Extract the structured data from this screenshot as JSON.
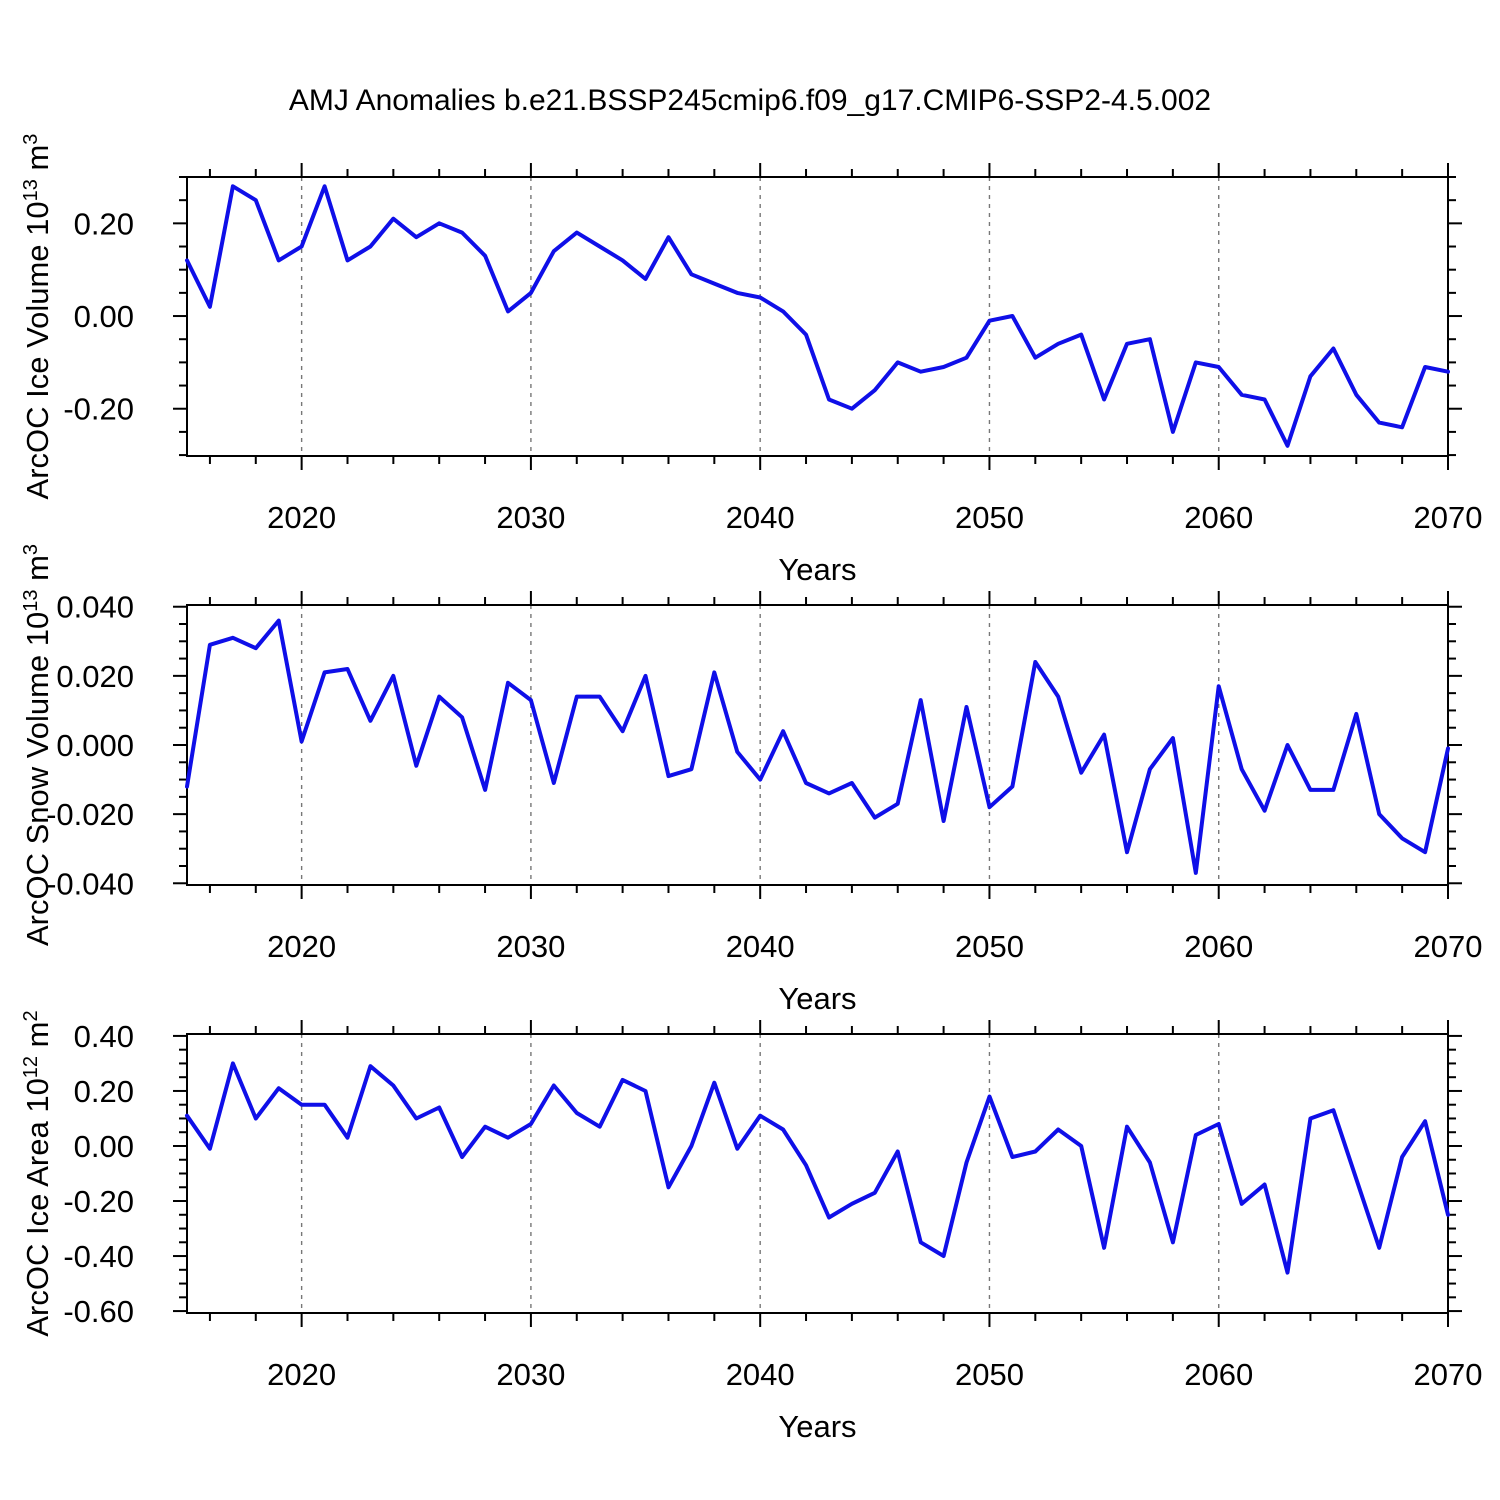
{
  "title": "AMJ Anomalies b.e21.BSSP245cmip6.f09_g17.CMIP6-SSP2-4.5.002",
  "style": {
    "line_color": "#0f0fe8",
    "grid_color": "#777777",
    "axis_color": "#000000",
    "background": "#ffffff"
  },
  "x_axis": {
    "label": "Years",
    "range": [
      2015,
      2070
    ],
    "labeled_ticks": [
      2020,
      2030,
      2040,
      2050,
      2060,
      2070
    ],
    "minor_tick_step": 2,
    "grid_years": [
      2020,
      2030,
      2040,
      2050,
      2060
    ],
    "years": [
      2015,
      2016,
      2017,
      2018,
      2019,
      2020,
      2021,
      2022,
      2023,
      2024,
      2025,
      2026,
      2027,
      2028,
      2029,
      2030,
      2031,
      2032,
      2033,
      2034,
      2035,
      2036,
      2037,
      2038,
      2039,
      2040,
      2041,
      2042,
      2043,
      2044,
      2045,
      2046,
      2047,
      2048,
      2049,
      2050,
      2051,
      2052,
      2053,
      2054,
      2055,
      2056,
      2057,
      2058,
      2059,
      2060,
      2061,
      2062,
      2063,
      2064,
      2065,
      2066,
      2067,
      2068,
      2069,
      2070
    ]
  },
  "chart_data": [
    {
      "id": "ice-volume",
      "type": "line",
      "ylabel": "ArcOC Ice Volume 10^13 m^3",
      "ylabel_rich": [
        {
          "t": "ArcOC Ice Volume 10"
        },
        {
          "t": "13",
          "sup": true
        },
        {
          "t": " m"
        },
        {
          "t": "3",
          "sup": true
        }
      ],
      "ylim": [
        -0.302,
        0.3
      ],
      "yticks": [
        -0.2,
        0.0,
        0.2
      ],
      "ytick_minor_step": 0.05,
      "tick_decimals": 2,
      "values": [
        0.12,
        0.02,
        0.28,
        0.25,
        0.12,
        0.15,
        0.28,
        0.12,
        0.15,
        0.21,
        0.17,
        0.2,
        0.18,
        0.13,
        0.01,
        0.05,
        0.14,
        0.18,
        0.15,
        0.12,
        0.08,
        0.17,
        0.09,
        0.07,
        0.05,
        0.04,
        0.01,
        -0.04,
        -0.18,
        -0.2,
        -0.16,
        -0.1,
        -0.12,
        -0.11,
        -0.09,
        -0.01,
        0.0,
        -0.09,
        -0.06,
        -0.04,
        -0.18,
        -0.06,
        -0.05,
        -0.25,
        -0.1,
        -0.11,
        -0.17,
        -0.18,
        -0.28,
        -0.13,
        -0.07,
        -0.17,
        -0.23,
        -0.24,
        -0.11,
        -0.12
      ]
    },
    {
      "id": "snow-volume",
      "type": "line",
      "ylabel": "ArcOC Snow Volume 10^13 m^3",
      "ylabel_rich": [
        {
          "t": "ArcOC Snow Volume 10"
        },
        {
          "t": "13",
          "sup": true
        },
        {
          "t": " m"
        },
        {
          "t": "3",
          "sup": true
        }
      ],
      "ylim": [
        -0.0405,
        0.0405
      ],
      "yticks": [
        -0.04,
        -0.02,
        0.0,
        0.02,
        0.04
      ],
      "ytick_minor_step": 0.005,
      "tick_decimals": 3,
      "values": [
        -0.012,
        0.029,
        0.031,
        0.028,
        0.036,
        0.001,
        0.021,
        0.022,
        0.007,
        0.02,
        -0.006,
        0.014,
        0.008,
        -0.013,
        0.018,
        0.013,
        -0.011,
        0.014,
        0.014,
        0.004,
        0.02,
        -0.009,
        -0.007,
        0.021,
        -0.002,
        -0.01,
        0.004,
        -0.011,
        -0.014,
        -0.011,
        -0.021,
        -0.017,
        0.013,
        -0.022,
        0.011,
        -0.018,
        -0.012,
        0.024,
        0.014,
        -0.008,
        0.003,
        -0.031,
        -0.007,
        0.002,
        -0.037,
        0.017,
        -0.007,
        -0.019,
        0.0,
        -0.013,
        -0.013,
        0.009,
        -0.02,
        -0.027,
        -0.031,
        -0.001
      ]
    },
    {
      "id": "ice-area",
      "type": "line",
      "ylabel": "ArcOC Ice Area 10^12 m^2",
      "ylabel_rich": [
        {
          "t": "ArcOC Ice Area 10"
        },
        {
          "t": "12",
          "sup": true
        },
        {
          "t": " m"
        },
        {
          "t": "2",
          "sup": true
        }
      ],
      "ylim": [
        -0.607,
        0.407
      ],
      "yticks": [
        -0.6,
        -0.4,
        -0.2,
        0.0,
        0.2,
        0.4
      ],
      "ytick_minor_step": 0.05,
      "tick_decimals": 2,
      "values": [
        0.11,
        -0.01,
        0.3,
        0.1,
        0.21,
        0.15,
        0.15,
        0.03,
        0.29,
        0.22,
        0.1,
        0.14,
        -0.04,
        0.07,
        0.03,
        0.08,
        0.22,
        0.12,
        0.07,
        0.24,
        0.2,
        -0.15,
        0.0,
        0.23,
        -0.01,
        0.11,
        0.06,
        -0.07,
        -0.26,
        -0.21,
        -0.17,
        -0.02,
        -0.35,
        -0.4,
        -0.06,
        0.18,
        -0.04,
        -0.02,
        0.06,
        0.0,
        -0.37,
        0.07,
        -0.06,
        -0.35,
        0.04,
        0.08,
        -0.21,
        -0.14,
        -0.46,
        0.1,
        0.13,
        -0.12,
        -0.37,
        -0.04,
        0.09,
        -0.25
      ]
    }
  ]
}
